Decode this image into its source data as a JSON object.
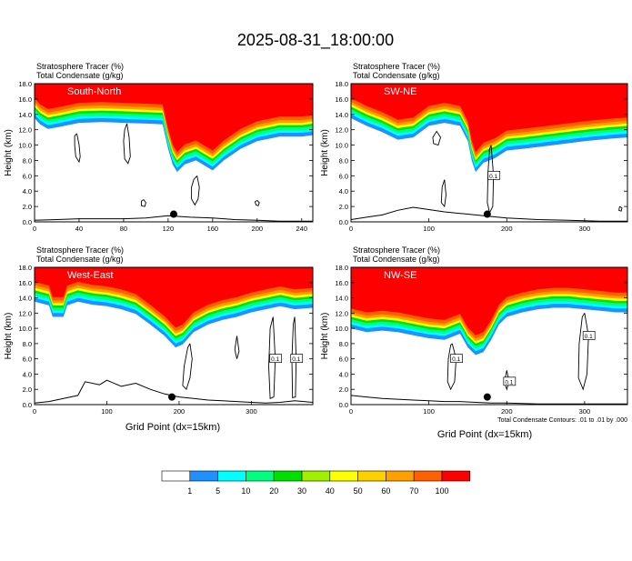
{
  "title": "2025-08-31_18:00:00",
  "chart_data": [
    {
      "type": "heatmap",
      "panel_label": "South-North",
      "left_label_line1": "Stratosphere Tracer   (%)",
      "left_label_line2": "Total Condensate   (g/kg)",
      "ylabel": "Height (km)",
      "ylim": [
        0,
        18
      ],
      "yticks": [
        "0.0",
        "2.0",
        "4.0",
        "6.0",
        "8.0",
        "10.0",
        "12.0",
        "14.0",
        "16.0",
        "18.0"
      ],
      "xlim": [
        0,
        250
      ],
      "xticks": [
        "0",
        "40",
        "80",
        "120",
        "160",
        "200",
        "240"
      ],
      "tracer_bottom_km": [
        [
          0,
          14.0
        ],
        [
          5,
          13.2
        ],
        [
          12,
          12.6
        ],
        [
          20,
          12.8
        ],
        [
          40,
          13.4
        ],
        [
          60,
          13.5
        ],
        [
          80,
          13.4
        ],
        [
          100,
          13.3
        ],
        [
          115,
          13.2
        ],
        [
          120,
          10.0
        ],
        [
          124,
          8.0
        ],
        [
          128,
          7.0
        ],
        [
          135,
          8.0
        ],
        [
          145,
          8.5
        ],
        [
          160,
          7.2
        ],
        [
          170,
          8.5
        ],
        [
          185,
          10.0
        ],
        [
          200,
          11.0
        ],
        [
          220,
          11.6
        ],
        [
          240,
          11.6
        ],
        [
          250,
          11.8
        ]
      ],
      "cloud_contours": [
        [
          [
            38,
            11.5
          ],
          [
            40,
            10.0
          ],
          [
            41,
            8.5
          ],
          [
            40,
            7.8
          ],
          [
            37,
            8.5
          ],
          [
            36,
            10.0
          ],
          [
            36,
            11.2
          ],
          [
            38,
            11.5
          ]
        ],
        [
          [
            83,
            12.8
          ],
          [
            85,
            11.0
          ],
          [
            86,
            8.5
          ],
          [
            84,
            7.6
          ],
          [
            81,
            8.2
          ],
          [
            80,
            10.5
          ],
          [
            81,
            12.0
          ],
          [
            83,
            12.8
          ]
        ],
        [
          [
            146,
            6.0
          ],
          [
            148,
            4.5
          ],
          [
            147,
            3.0
          ],
          [
            144,
            2.2
          ],
          [
            141,
            3.0
          ],
          [
            141,
            4.5
          ],
          [
            143,
            5.5
          ],
          [
            146,
            6.0
          ]
        ],
        [
          [
            98,
            2.9
          ],
          [
            100,
            2.5
          ],
          [
            99,
            2.0
          ],
          [
            96,
            2.1
          ],
          [
            96,
            2.7
          ],
          [
            98,
            2.9
          ]
        ],
        [
          [
            200,
            2.8
          ],
          [
            202,
            2.5
          ],
          [
            201,
            2.1
          ],
          [
            199,
            2.2
          ],
          [
            198,
            2.6
          ],
          [
            200,
            2.8
          ]
        ]
      ],
      "terrain_km": [
        [
          0,
          0.2
        ],
        [
          20,
          0.3
        ],
        [
          40,
          0.4
        ],
        [
          60,
          0.4
        ],
        [
          80,
          0.4
        ],
        [
          100,
          0.5
        ],
        [
          120,
          0.8
        ],
        [
          140,
          0.6
        ],
        [
          160,
          0.5
        ],
        [
          180,
          0.3
        ],
        [
          200,
          0.2
        ],
        [
          220,
          0.1
        ],
        [
          250,
          0.1
        ]
      ],
      "marker_x": 125,
      "marker_y_km": 1.0
    },
    {
      "type": "heatmap",
      "panel_label": "SW-NE",
      "left_label_line1": "Stratosphere Tracer   (%)",
      "left_label_line2": "Total Condensate   (g/kg)",
      "ylabel": "Height (km)",
      "ylim": [
        0,
        18
      ],
      "yticks": [
        "0.0",
        "2.0",
        "4.0",
        "6.0",
        "8.0",
        "10.0",
        "12.0",
        "14.0",
        "16.0",
        "18.0"
      ],
      "xlim": [
        0,
        355
      ],
      "xticks": [
        "0",
        "100",
        "200",
        "300"
      ],
      "contour_labels": [
        "0.1"
      ],
      "tracer_bottom_km": [
        [
          0,
          14.0
        ],
        [
          20,
          13.0
        ],
        [
          40,
          12.2
        ],
        [
          60,
          11.2
        ],
        [
          80,
          11.5
        ],
        [
          100,
          13.0
        ],
        [
          120,
          13.4
        ],
        [
          140,
          13.0
        ],
        [
          150,
          11.0
        ],
        [
          155,
          8.5
        ],
        [
          160,
          7.0
        ],
        [
          170,
          8.2
        ],
        [
          185,
          8.8
        ],
        [
          200,
          9.8
        ],
        [
          220,
          10.0
        ],
        [
          260,
          10.5
        ],
        [
          300,
          11.0
        ],
        [
          330,
          11.3
        ],
        [
          355,
          11.5
        ]
      ],
      "cloud_contours": [
        [
          [
            105,
            11.0
          ],
          [
            110,
            11.8
          ],
          [
            115,
            11.0
          ],
          [
            112,
            10.0
          ],
          [
            106,
            10.2
          ],
          [
            105,
            11.0
          ]
        ],
        [
          [
            180,
            10.0
          ],
          [
            183,
            6.0
          ],
          [
            182,
            2.0
          ],
          [
            178,
            1.2
          ],
          [
            175,
            2.5
          ],
          [
            176,
            6.5
          ],
          [
            178,
            9.5
          ],
          [
            180,
            10.0
          ]
        ],
        [
          [
            120,
            5.5
          ],
          [
            122,
            3.5
          ],
          [
            120,
            2.0
          ],
          [
            116,
            2.5
          ],
          [
            117,
            4.5
          ],
          [
            120,
            5.5
          ]
        ],
        [
          [
            345,
            2.0
          ],
          [
            348,
            1.8
          ],
          [
            347,
            1.4
          ],
          [
            344,
            1.5
          ],
          [
            345,
            2.0
          ]
        ]
      ],
      "terrain_km": [
        [
          0,
          0.3
        ],
        [
          20,
          0.6
        ],
        [
          40,
          0.9
        ],
        [
          60,
          1.5
        ],
        [
          80,
          1.9
        ],
        [
          100,
          1.6
        ],
        [
          120,
          1.3
        ],
        [
          140,
          1.1
        ],
        [
          160,
          0.9
        ],
        [
          180,
          0.7
        ],
        [
          200,
          0.5
        ],
        [
          240,
          0.3
        ],
        [
          280,
          0.2
        ],
        [
          320,
          0.1
        ],
        [
          355,
          0.1
        ]
      ],
      "marker_x": 175,
      "marker_y_km": 1.0
    },
    {
      "type": "heatmap",
      "panel_label": "West-East",
      "left_label_line1": "Stratosphere Tracer   (%)",
      "left_label_line2": "Total Condensate   (g/kg)",
      "ylabel": "Height (km)",
      "ylim": [
        0,
        18
      ],
      "yticks": [
        "0.0",
        "2.0",
        "4.0",
        "6.0",
        "8.0",
        "10.0",
        "12.0",
        "14.0",
        "16.0",
        "18.0"
      ],
      "xlim": [
        0,
        385
      ],
      "xticks": [
        "0",
        "100",
        "200",
        "300"
      ],
      "contour_labels": [
        "0.1",
        "0.1"
      ],
      "tracer_bottom_km": [
        [
          0,
          14.0
        ],
        [
          20,
          13.5
        ],
        [
          25,
          12.0
        ],
        [
          40,
          12.0
        ],
        [
          45,
          13.5
        ],
        [
          60,
          14.0
        ],
        [
          80,
          13.6
        ],
        [
          100,
          13.4
        ],
        [
          120,
          13.0
        ],
        [
          140,
          12.4
        ],
        [
          160,
          11.0
        ],
        [
          180,
          9.5
        ],
        [
          195,
          8.0
        ],
        [
          205,
          8.4
        ],
        [
          220,
          10.0
        ],
        [
          240,
          11.0
        ],
        [
          260,
          11.6
        ],
        [
          280,
          12.0
        ],
        [
          300,
          12.6
        ],
        [
          320,
          13.0
        ],
        [
          340,
          13.4
        ],
        [
          360,
          13.0
        ],
        [
          385,
          13.2
        ]
      ],
      "cloud_contours": [
        [
          [
            215,
            8.0
          ],
          [
            218,
            6.0
          ],
          [
            215,
            3.5
          ],
          [
            210,
            2.0
          ],
          [
            205,
            2.5
          ],
          [
            207,
            5.0
          ],
          [
            212,
            7.5
          ],
          [
            215,
            8.0
          ]
        ],
        [
          [
            330,
            11.5
          ],
          [
            333,
            6.0
          ],
          [
            331,
            1.0
          ],
          [
            326,
            0.8
          ],
          [
            324,
            5.0
          ],
          [
            326,
            10.0
          ],
          [
            330,
            11.5
          ]
        ],
        [
          [
            360,
            11.5
          ],
          [
            362,
            6.0
          ],
          [
            361,
            1.0
          ],
          [
            357,
            0.9
          ],
          [
            356,
            6.0
          ],
          [
            358,
            10.5
          ],
          [
            360,
            11.5
          ]
        ],
        [
          [
            280,
            9.0
          ],
          [
            283,
            7.0
          ],
          [
            280,
            6.0
          ],
          [
            277,
            7.2
          ],
          [
            280,
            9.0
          ]
        ]
      ],
      "terrain_km": [
        [
          0,
          0.2
        ],
        [
          20,
          0.4
        ],
        [
          40,
          0.8
        ],
        [
          60,
          1.2
        ],
        [
          70,
          3.0
        ],
        [
          90,
          2.6
        ],
        [
          100,
          3.2
        ],
        [
          120,
          2.4
        ],
        [
          140,
          2.8
        ],
        [
          160,
          2.0
        ],
        [
          180,
          1.4
        ],
        [
          200,
          1.0
        ],
        [
          220,
          0.8
        ],
        [
          240,
          0.6
        ],
        [
          260,
          0.5
        ],
        [
          280,
          0.4
        ],
        [
          300,
          0.3
        ],
        [
          320,
          0.2
        ],
        [
          340,
          0.3
        ],
        [
          360,
          0.5
        ],
        [
          385,
          0.3
        ]
      ],
      "marker_x": 190,
      "marker_y_km": 1.0
    },
    {
      "type": "heatmap",
      "panel_label": "NW-SE",
      "left_label_line1": "Stratosphere Tracer   (%)",
      "left_label_line2": "Total Condensate   (g/kg)",
      "ylabel": "Height (km)",
      "ylim": [
        0,
        18
      ],
      "yticks": [
        "0.0",
        "2.0",
        "4.0",
        "6.0",
        "8.0",
        "10.0",
        "12.0",
        "14.0",
        "16.0",
        "18.0"
      ],
      "xlim": [
        0,
        355
      ],
      "xticks": [
        "0",
        "100",
        "200",
        "300"
      ],
      "contour_labels": [
        "0.1",
        "0.1",
        "0.1"
      ],
      "tracer_bottom_km": [
        [
          0,
          10.5
        ],
        [
          20,
          10.0
        ],
        [
          40,
          10.2
        ],
        [
          60,
          10.0
        ],
        [
          80,
          9.6
        ],
        [
          100,
          9.2
        ],
        [
          120,
          9.0
        ],
        [
          140,
          9.8
        ],
        [
          150,
          8.0
        ],
        [
          160,
          7.0
        ],
        [
          170,
          7.4
        ],
        [
          180,
          9.0
        ],
        [
          190,
          11.0
        ],
        [
          200,
          12.0
        ],
        [
          220,
          12.6
        ],
        [
          240,
          13.0
        ],
        [
          260,
          13.2
        ],
        [
          280,
          13.2
        ],
        [
          300,
          13.0
        ],
        [
          320,
          12.8
        ],
        [
          340,
          12.6
        ],
        [
          355,
          12.6
        ]
      ],
      "cloud_contours": [
        [
          [
            130,
            8.0
          ],
          [
            135,
            6.0
          ],
          [
            133,
            3.0
          ],
          [
            128,
            2.0
          ],
          [
            124,
            3.0
          ],
          [
            125,
            6.0
          ],
          [
            128,
            7.8
          ],
          [
            130,
            8.0
          ]
        ],
        [
          [
            300,
            12.0
          ],
          [
            305,
            9.0
          ],
          [
            303,
            4.0
          ],
          [
            298,
            2.0
          ],
          [
            292,
            3.5
          ],
          [
            293,
            8.0
          ],
          [
            297,
            11.5
          ],
          [
            300,
            12.0
          ]
        ],
        [
          [
            200,
            4.5
          ],
          [
            203,
            3.0
          ],
          [
            200,
            2.0
          ],
          [
            197,
            3.0
          ],
          [
            200,
            4.5
          ]
        ]
      ],
      "terrain_km": [
        [
          0,
          1.2
        ],
        [
          20,
          1.0
        ],
        [
          40,
          0.8
        ],
        [
          60,
          0.7
        ],
        [
          80,
          0.6
        ],
        [
          100,
          0.5
        ],
        [
          120,
          0.4
        ],
        [
          140,
          0.4
        ],
        [
          160,
          0.3
        ],
        [
          180,
          0.2
        ],
        [
          200,
          0.2
        ],
        [
          240,
          0.1
        ],
        [
          280,
          0.1
        ],
        [
          320,
          0.1
        ],
        [
          355,
          0.1
        ]
      ],
      "marker_x": 175,
      "marker_y_km": 1.0,
      "xlabel": "Grid Point (dx=15km)",
      "footnote": "Total Condensate Contours: .01 to .01 by .000"
    }
  ],
  "bottom_left_xlabel": "Grid Point (dx=15km)",
  "colorbar": {
    "labels": [
      "1",
      "5",
      "10",
      "20",
      "30",
      "40",
      "50",
      "60",
      "70",
      "100"
    ],
    "colors": [
      "#ffffff",
      "#1e90ff",
      "#00ffff",
      "#00ff7f",
      "#00e000",
      "#a0f000",
      "#ffff00",
      "#ffd000",
      "#ffa000",
      "#ff6000",
      "#ff0000"
    ]
  }
}
